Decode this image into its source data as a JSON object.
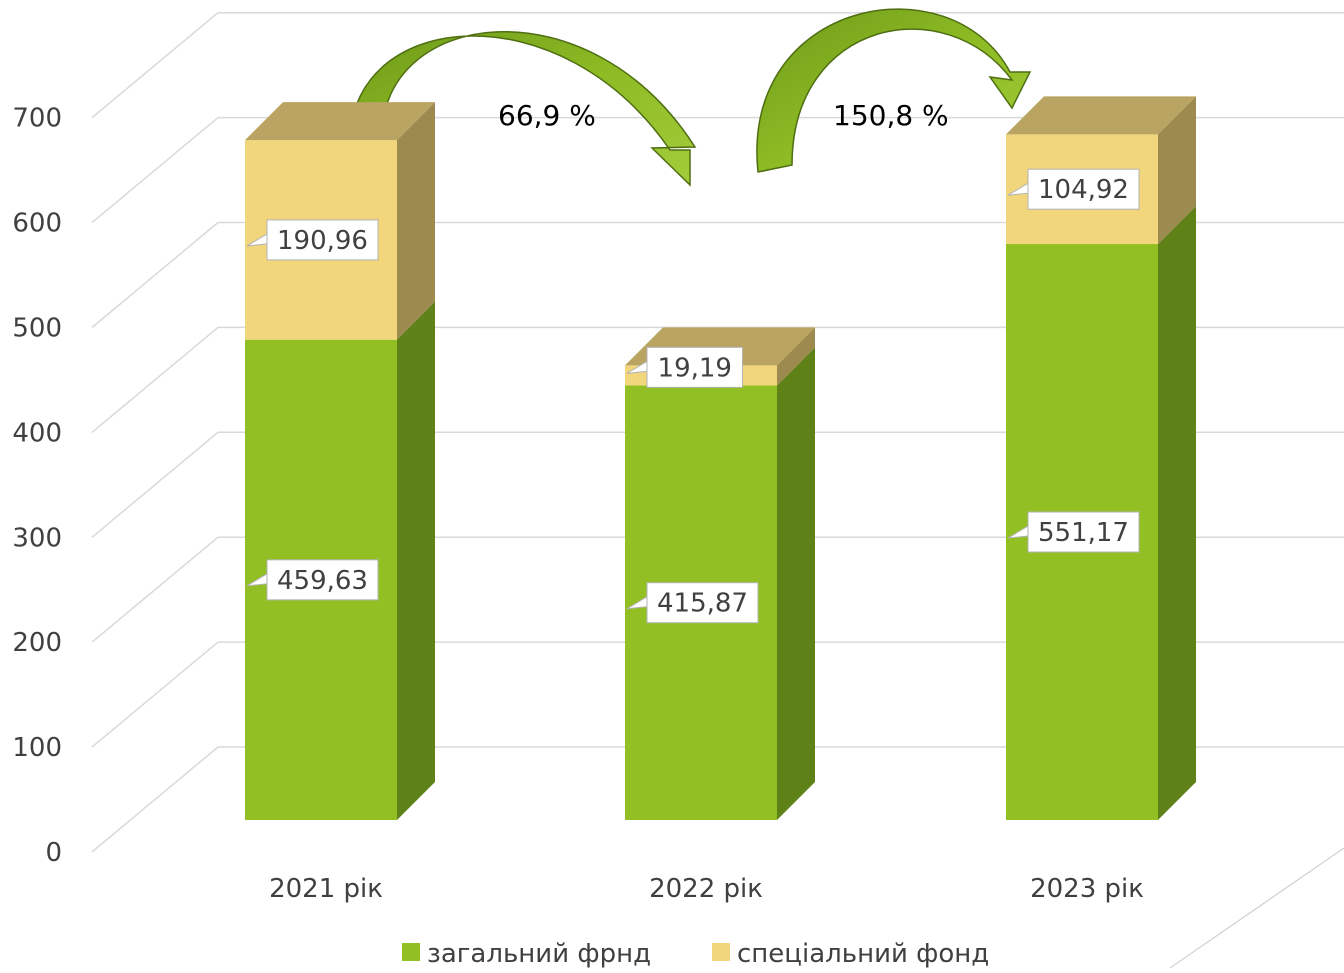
{
  "chart_data": {
    "type": "bar",
    "stacked": true,
    "three_d": true,
    "categories": [
      "2021 рік",
      "2022 рік",
      "2023 рік"
    ],
    "series": [
      {
        "name": "загальний фрнд",
        "values": [
          459.63,
          415.87,
          551.17
        ],
        "labels": [
          "459,63",
          "415,87",
          "551,17"
        ]
      },
      {
        "name": "спеціальний фонд",
        "values": [
          190.96,
          19.19,
          104.92
        ],
        "labels": [
          "190,96",
          "19,19",
          "104,92"
        ]
      }
    ],
    "y_ticks": [
      "0",
      "100",
      "200",
      "300",
      "400",
      "500",
      "600",
      "700"
    ],
    "ylim": [
      0,
      700
    ],
    "grid": true,
    "legend": "bottom",
    "annotations": [
      "66,9 %",
      "150,8 %"
    ],
    "colors": {
      "general_front": "#92c024",
      "general_side": "#5e8218",
      "special_front": "#f2d67c",
      "special_side": "#9d8a4f",
      "special_top": "#b9a462",
      "grid": "#d9d9d9",
      "arrow": "#82b01e"
    }
  }
}
